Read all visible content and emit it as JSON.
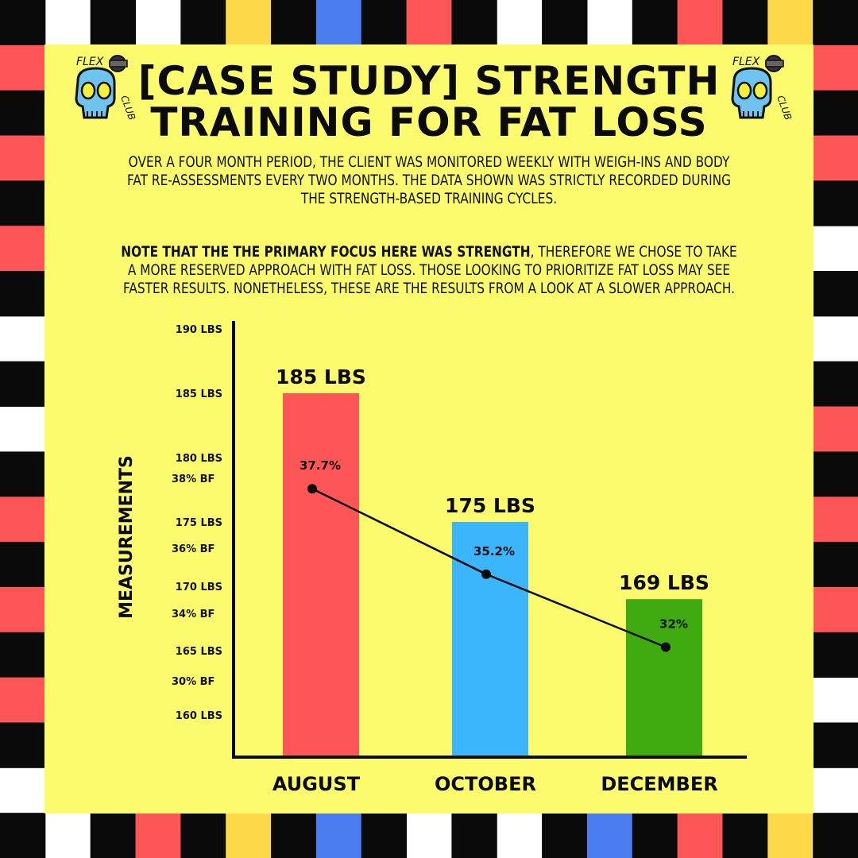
{
  "title": {
    "line1": "[CASE STUDY] STRENGTH",
    "line2": "TRAINING FOR FAT LOSS"
  },
  "description": {
    "paragraph1": "OVER A FOUR MONTH PERIOD, THE CLIENT WAS MONITORED WEEKLY WITH WEIGH-INS AND BODY FAT RE-ASSESSMENTS EVERY TWO MONTHS. THE DATA SHOWN WAS STRICTLY RECORDED DURING THE STRENGTH-BASED TRAINING CYCLES.",
    "paragraph2_bold": "NOTE THAT THE THE PRIMARY FOCUS HERE WAS STRENGTH",
    "paragraph2_rest": ", THEREFORE WE CHOSE TO TAKE A MORE RESERVED APPROACH WITH FAT LOSS. THOSE LOOKING TO PRIORITIZE FAT LOSS MAY SEE FASTER RESULTS. NONETHELESS, THESE ARE THE RESULTS FROM A LOOK AT A SLOWER APPROACH."
  },
  "logo": {
    "text_top": "FLEX",
    "text_side": "CLUB",
    "icon": "skull-dumbbell-icon"
  },
  "colors": {
    "panel": "#fcfb6e",
    "august": "#fe5656",
    "october": "#3bb6fd",
    "december": "#40ab10",
    "checker_dark": "#0a0a0a",
    "checker_red": "#fe5656",
    "checker_blue": "#4a7df0",
    "checker_yellow": "#fdd94a"
  },
  "chart_data": {
    "type": "bar",
    "ylabel": "MEASUREMENTS",
    "categories": [
      "AUGUST",
      "OCTOBER",
      "DECEMBER"
    ],
    "weight_ticks": [
      {
        "value": 190,
        "label": "190 LBS"
      },
      {
        "value": 185,
        "label": "185 LBS"
      },
      {
        "value": 180,
        "label": "180 LBS"
      },
      {
        "value": 175,
        "label": "175 LBS"
      },
      {
        "value": 170,
        "label": "170 LBS"
      },
      {
        "value": 165,
        "label": "165 LBS"
      },
      {
        "value": 160,
        "label": "160 LBS"
      }
    ],
    "bodyfat_ticks": [
      {
        "value": 38,
        "label": "38% BF"
      },
      {
        "value": 36,
        "label": "36% BF"
      },
      {
        "value": 34,
        "label": "34% BF"
      },
      {
        "value": 30,
        "label": "30% BF"
      }
    ],
    "series": [
      {
        "name": "weight",
        "type": "bar",
        "values": [
          185,
          175,
          169
        ],
        "labels": [
          "185 LBS",
          "175 LBS",
          "169 LBS"
        ]
      },
      {
        "name": "body fat",
        "type": "line",
        "values": [
          37.7,
          35.2,
          32
        ],
        "labels": [
          "37.7%",
          "35.2%",
          "32%"
        ]
      }
    ]
  }
}
